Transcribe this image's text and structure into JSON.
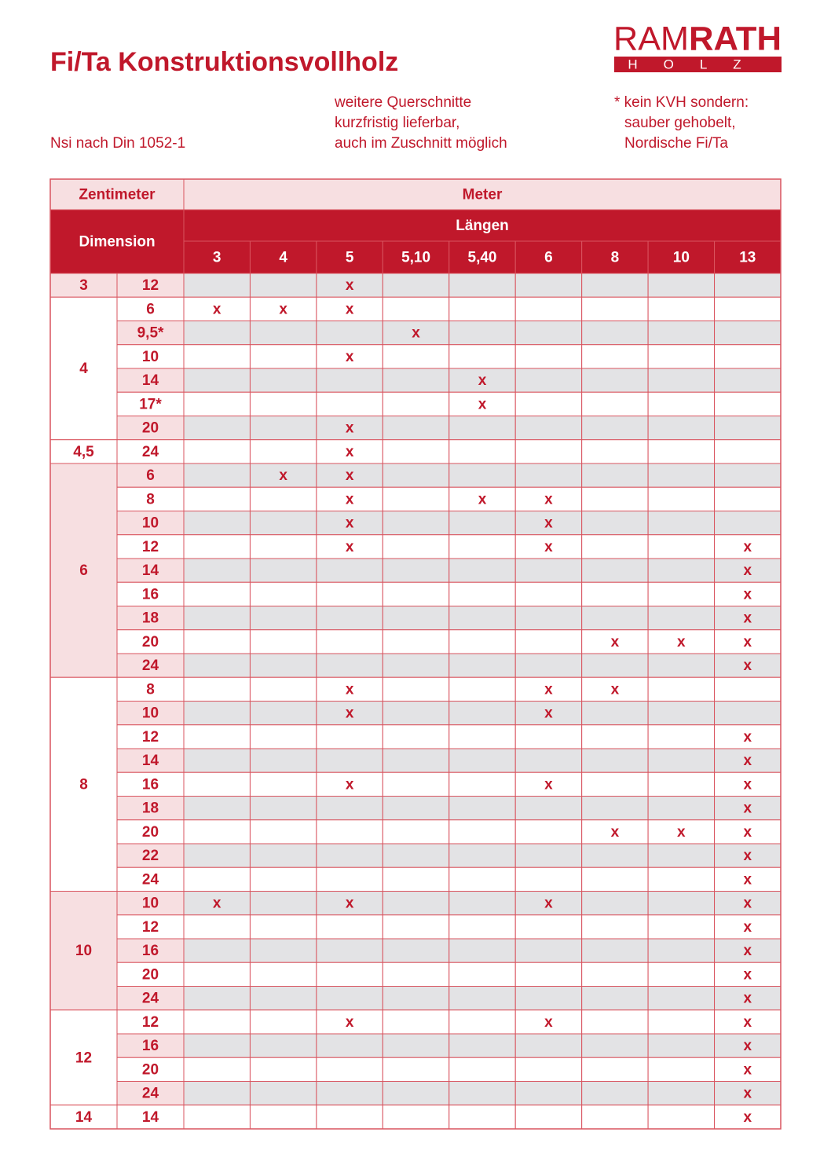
{
  "header": {
    "title": "Fi/Ta Konstruktionsvollholz",
    "logo": {
      "light": "RAM",
      "bold": "RATH",
      "sub": "HOLZ"
    }
  },
  "notes": {
    "left": "Nsi nach Din 1052-1",
    "middle": [
      "weitere Querschnitte",
      "kurzfristig lieferbar,",
      "auch im Zuschnitt möglich"
    ],
    "right": [
      "* kein KVH sondern:",
      "sauber gehobelt,",
      "Nordische Fi/Ta"
    ]
  },
  "table": {
    "unit_left": "Zentimeter",
    "unit_right": "Meter",
    "dimension": "Dimension",
    "lengths_title": "Längen",
    "lengths": [
      "3",
      "4",
      "5",
      "5,10",
      "5,40",
      "6",
      "8",
      "10",
      "13"
    ],
    "groups": [
      {
        "label": "3",
        "rows": [
          {
            "dim": "12",
            "cells": [
              null,
              null,
              "x",
              null,
              null,
              null,
              null,
              null,
              null
            ]
          }
        ]
      },
      {
        "label": "4",
        "rows": [
          {
            "dim": "6",
            "cells": [
              "x",
              "x",
              "x",
              null,
              null,
              null,
              null,
              null,
              null
            ]
          },
          {
            "dim": "9,5*",
            "cells": [
              null,
              null,
              null,
              "x",
              null,
              null,
              null,
              null,
              null
            ]
          },
          {
            "dim": "10",
            "cells": [
              null,
              null,
              "x",
              null,
              null,
              null,
              null,
              null,
              null
            ]
          },
          {
            "dim": "14",
            "cells": [
              null,
              null,
              null,
              null,
              "x",
              null,
              null,
              null,
              null
            ]
          },
          {
            "dim": "17*",
            "cells": [
              null,
              null,
              null,
              null,
              "x",
              null,
              null,
              null,
              null
            ]
          },
          {
            "dim": "20",
            "cells": [
              null,
              null,
              "x",
              null,
              null,
              null,
              null,
              null,
              null
            ]
          }
        ]
      },
      {
        "label": "4,5",
        "rows": [
          {
            "dim": "24",
            "cells": [
              null,
              null,
              "x",
              null,
              null,
              null,
              null,
              null,
              null
            ]
          }
        ]
      },
      {
        "label": "6",
        "rows": [
          {
            "dim": "6",
            "cells": [
              null,
              "x",
              "x",
              null,
              null,
              null,
              null,
              null,
              null
            ]
          },
          {
            "dim": "8",
            "cells": [
              null,
              null,
              "x",
              null,
              "x",
              "x",
              null,
              null,
              null
            ]
          },
          {
            "dim": "10",
            "cells": [
              null,
              null,
              "x",
              null,
              null,
              "x",
              null,
              null,
              null
            ]
          },
          {
            "dim": "12",
            "cells": [
              null,
              null,
              "x",
              null,
              null,
              "x",
              null,
              null,
              "x"
            ]
          },
          {
            "dim": "14",
            "cells": [
              null,
              null,
              null,
              null,
              null,
              null,
              null,
              null,
              "x"
            ]
          },
          {
            "dim": "16",
            "cells": [
              null,
              null,
              null,
              null,
              null,
              null,
              null,
              null,
              "x"
            ]
          },
          {
            "dim": "18",
            "cells": [
              null,
              null,
              null,
              null,
              null,
              null,
              null,
              null,
              "x"
            ]
          },
          {
            "dim": "20",
            "cells": [
              null,
              null,
              null,
              null,
              null,
              null,
              "x",
              "x",
              "x"
            ]
          },
          {
            "dim": "24",
            "cells": [
              null,
              null,
              null,
              null,
              null,
              null,
              null,
              null,
              "x"
            ]
          }
        ]
      },
      {
        "label": "8",
        "rows": [
          {
            "dim": "8",
            "cells": [
              null,
              null,
              "x",
              null,
              null,
              "x",
              "x",
              null,
              null
            ]
          },
          {
            "dim": "10",
            "cells": [
              null,
              null,
              "x",
              null,
              null,
              "x",
              null,
              null,
              null
            ]
          },
          {
            "dim": "12",
            "cells": [
              null,
              null,
              null,
              null,
              null,
              null,
              null,
              null,
              "x"
            ]
          },
          {
            "dim": "14",
            "cells": [
              null,
              null,
              null,
              null,
              null,
              null,
              null,
              null,
              "x"
            ]
          },
          {
            "dim": "16",
            "cells": [
              null,
              null,
              "x",
              null,
              null,
              "x",
              null,
              null,
              "x"
            ]
          },
          {
            "dim": "18",
            "cells": [
              null,
              null,
              null,
              null,
              null,
              null,
              null,
              null,
              "x"
            ]
          },
          {
            "dim": "20",
            "cells": [
              null,
              null,
              null,
              null,
              null,
              null,
              "x",
              "x",
              "x"
            ]
          },
          {
            "dim": "22",
            "cells": [
              null,
              null,
              null,
              null,
              null,
              null,
              null,
              null,
              "x"
            ]
          },
          {
            "dim": "24",
            "cells": [
              null,
              null,
              null,
              null,
              null,
              null,
              null,
              null,
              "x"
            ]
          }
        ]
      },
      {
        "label": "10",
        "rows": [
          {
            "dim": "10",
            "cells": [
              "x",
              null,
              "x",
              null,
              null,
              "x",
              null,
              null,
              "x"
            ]
          },
          {
            "dim": "12",
            "cells": [
              null,
              null,
              null,
              null,
              null,
              null,
              null,
              null,
              "x"
            ]
          },
          {
            "dim": "16",
            "cells": [
              null,
              null,
              null,
              null,
              null,
              null,
              null,
              null,
              "x"
            ]
          },
          {
            "dim": "20",
            "cells": [
              null,
              null,
              null,
              null,
              null,
              null,
              null,
              null,
              "x"
            ]
          },
          {
            "dim": "24",
            "cells": [
              null,
              null,
              null,
              null,
              null,
              null,
              null,
              null,
              "x"
            ]
          }
        ]
      },
      {
        "label": "12",
        "rows": [
          {
            "dim": "12",
            "cells": [
              null,
              null,
              "x",
              null,
              null,
              "x",
              null,
              null,
              "x"
            ]
          },
          {
            "dim": "16",
            "cells": [
              null,
              null,
              null,
              null,
              null,
              null,
              null,
              null,
              "x"
            ]
          },
          {
            "dim": "20",
            "cells": [
              null,
              null,
              null,
              null,
              null,
              null,
              null,
              null,
              "x"
            ]
          },
          {
            "dim": "24",
            "cells": [
              null,
              null,
              null,
              null,
              null,
              null,
              null,
              null,
              "x"
            ]
          }
        ]
      },
      {
        "label": "14",
        "rows": [
          {
            "dim": "14",
            "cells": [
              null,
              null,
              null,
              null,
              null,
              null,
              null,
              null,
              "x"
            ]
          }
        ]
      }
    ]
  }
}
